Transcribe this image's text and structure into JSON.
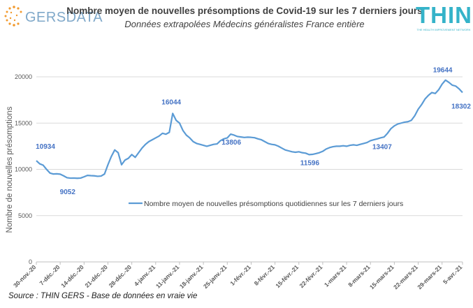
{
  "header": {
    "title": "Nombre moyen de nouvelles présomptions de Covid-19 sur les 7 derniers jours",
    "subtitle": "Données extrapolées Médecins généralistes France entière",
    "logo_left_text": "GERSDATA",
    "logo_right_text": "THIN",
    "logo_right_tagline": "THE HEALTH IMPROVEMENT NETWORK"
  },
  "footer": {
    "source": "Source : THIN GERS - Base de données en vraie vie"
  },
  "colors": {
    "line": "#5b9bd5",
    "label": "#4472c4",
    "grid": "#d9d9d9",
    "axis_text": "#595959"
  },
  "chart_data": {
    "type": "line",
    "ylabel": "Nombre de nouvelles présomptions",
    "ylim": [
      0,
      20000
    ],
    "yticks": [
      0,
      5000,
      10000,
      15000,
      20000
    ],
    "grid": true,
    "legend_position": "center",
    "x_start": "30-nov.-20",
    "x_end": "5-avr.-21",
    "xtick_labels": [
      "30-nov.-20",
      "7-déc.-20",
      "14-déc.-20",
      "21-déc.-20",
      "28-déc.-20",
      "4-janv.-21",
      "11-janv.-21",
      "18-janv.-21",
      "25-janv.-21",
      "1-févr.-21",
      "8-févr.-21",
      "15-févr.-21",
      "22-févr.-21",
      "1-mars-21",
      "8-mars-21",
      "15-mars-21",
      "22-mars-21",
      "29-mars-21",
      "5-avr.-21"
    ],
    "series": [
      {
        "name": "Nombre moyen de nouvelles présomptions quotidiennes sur les 7 derniers jours",
        "values": [
          10934,
          10600,
          10450,
          10000,
          9600,
          9500,
          9520,
          9480,
          9300,
          9100,
          9052,
          9060,
          9040,
          9060,
          9200,
          9350,
          9320,
          9300,
          9250,
          9280,
          9500,
          10500,
          11400,
          12100,
          11800,
          10500,
          11000,
          11200,
          11600,
          11300,
          11800,
          12300,
          12700,
          13000,
          13200,
          13400,
          13600,
          13900,
          13800,
          14000,
          16044,
          15300,
          15000,
          14200,
          13700,
          13400,
          13000,
          12800,
          12700,
          12600,
          12500,
          12600,
          12700,
          12750,
          13100,
          13300,
          13400,
          13806,
          13700,
          13550,
          13500,
          13450,
          13480,
          13460,
          13420,
          13300,
          13200,
          13000,
          12800,
          12700,
          12650,
          12500,
          12300,
          12100,
          12000,
          11900,
          11850,
          11900,
          11800,
          11750,
          11596,
          11620,
          11700,
          11800,
          11950,
          12200,
          12350,
          12450,
          12500,
          12500,
          12550,
          12500,
          12600,
          12650,
          12600,
          12700,
          12800,
          12900,
          13100,
          13200,
          13300,
          13407,
          13500,
          13900,
          14400,
          14700,
          14900,
          15000,
          15100,
          15150,
          15300,
          15800,
          16500,
          17000,
          17600,
          18000,
          18300,
          18200,
          18600,
          19200,
          19644,
          19400,
          19100,
          19000,
          18700,
          18302
        ],
        "annotations": [
          {
            "index": 0,
            "label": "10934"
          },
          {
            "index": 10,
            "label": "9052"
          },
          {
            "index": 40,
            "label": "16044"
          },
          {
            "index": 57,
            "label": "13806"
          },
          {
            "index": 80,
            "label": "11596"
          },
          {
            "index": 101,
            "label": "13407"
          },
          {
            "index": 120,
            "label": "19644"
          },
          {
            "index": 125,
            "label": "18302"
          }
        ]
      }
    ]
  }
}
